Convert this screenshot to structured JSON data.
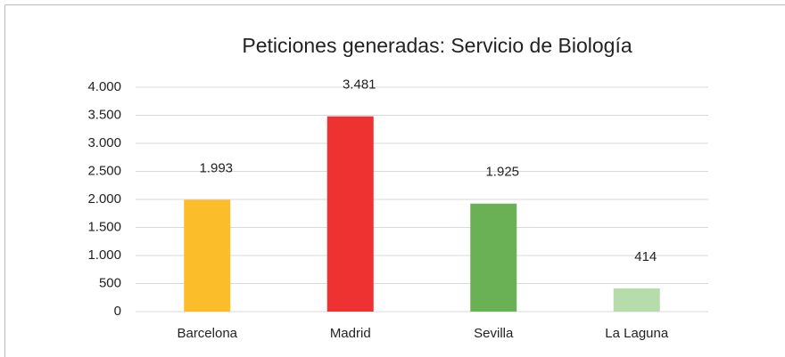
{
  "chart_data": {
    "type": "bar",
    "title": "Peticiones generadas: Servicio de Biología",
    "categories": [
      "Barcelona",
      "Madrid",
      "Sevilla",
      "La Laguna"
    ],
    "values": [
      1993,
      3481,
      1925,
      414
    ],
    "value_labels": [
      "1.993",
      "3.481",
      "1.925",
      "414"
    ],
    "colors": [
      "#fbbd29",
      "#ee3131",
      "#6ab155",
      "#b5dcaa"
    ],
    "ylim": [
      0,
      4000
    ],
    "yticks": [
      0,
      500,
      {
        "value": 1000,
        "label": "1.000"
      },
      {
        "value": 1500,
        "label": "1.500"
      },
      {
        "value": 2000,
        "label": "2.000"
      },
      {
        "value": 2500,
        "label": "2.500"
      },
      {
        "value": 3000,
        "label": "3.000"
      },
      {
        "value": 3500,
        "label": "3.500"
      },
      {
        "value": 4000,
        "label": "4.000"
      }
    ],
    "grid": true
  }
}
